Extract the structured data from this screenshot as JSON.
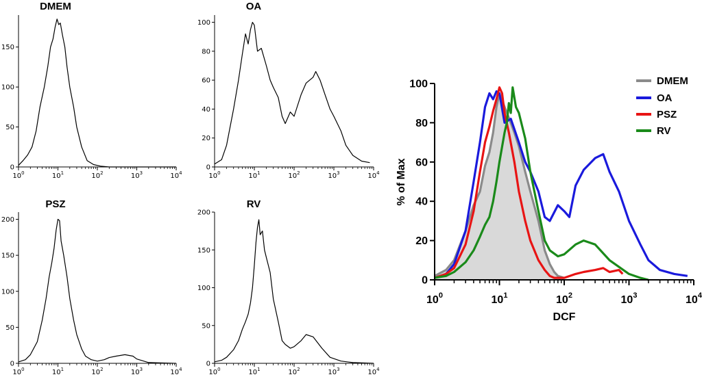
{
  "colors": {
    "DMEM": "#8a8a8a",
    "OA": "#1a1adc",
    "PSZ": "#e81414",
    "RV": "#1a8a1a",
    "fill": "#d9d9d9",
    "axis": "#000000"
  },
  "chart_data": [
    {
      "type": "line",
      "title": "DMEM",
      "xscale": "log",
      "xlim": [
        1,
        10000
      ],
      "ylim": [
        0,
        190
      ],
      "yticks": [
        0,
        50,
        100,
        150
      ],
      "xticks": [
        "1",
        "10",
        "100",
        "1000",
        "10000"
      ],
      "x": [
        1,
        1.3,
        1.7,
        2.2,
        2.8,
        3.5,
        4.5,
        5.5,
        6.5,
        7.5,
        8.5,
        9.5,
        10.5,
        11.5,
        13,
        15,
        17,
        20,
        25,
        30,
        40,
        55,
        80,
        120,
        200,
        10000
      ],
      "values": [
        2,
        8,
        15,
        25,
        45,
        75,
        100,
        125,
        150,
        160,
        175,
        185,
        178,
        180,
        165,
        150,
        125,
        100,
        75,
        50,
        25,
        8,
        3,
        1,
        0,
        0
      ]
    },
    {
      "type": "line",
      "title": "OA",
      "xscale": "log",
      "xlim": [
        1,
        10000
      ],
      "ylim": [
        0,
        105
      ],
      "yticks": [
        0,
        20,
        40,
        60,
        80,
        100
      ],
      "xticks": [
        "1",
        "10",
        "100",
        "1000",
        "10000"
      ],
      "x": [
        1,
        1.5,
        2,
        3,
        4,
        5,
        6,
        7,
        8,
        9,
        10,
        12,
        15,
        20,
        25,
        30,
        40,
        50,
        60,
        80,
        100,
        150,
        200,
        300,
        350,
        450,
        600,
        800,
        1000,
        1500,
        2000,
        3000,
        5000,
        8000
      ],
      "values": [
        2,
        5,
        15,
        40,
        60,
        78,
        92,
        85,
        95,
        100,
        98,
        80,
        82,
        70,
        60,
        55,
        48,
        35,
        30,
        38,
        35,
        50,
        58,
        62,
        66,
        60,
        50,
        40,
        35,
        25,
        15,
        8,
        4,
        3
      ]
    },
    {
      "type": "line",
      "title": "PSZ",
      "xscale": "log",
      "xlim": [
        1,
        10000
      ],
      "ylim": [
        0,
        210
      ],
      "yticks": [
        0,
        50,
        100,
        150,
        200
      ],
      "xticks": [
        "1",
        "10",
        "100",
        "1000",
        "10000"
      ],
      "x": [
        1,
        1.5,
        2,
        3,
        4,
        5,
        6,
        7,
        8,
        9,
        10,
        11,
        12,
        14,
        17,
        20,
        25,
        30,
        40,
        50,
        70,
        100,
        150,
        200,
        300,
        500,
        800,
        1000,
        2000,
        10000
      ],
      "values": [
        2,
        5,
        12,
        30,
        60,
        90,
        120,
        140,
        160,
        185,
        200,
        198,
        170,
        150,
        120,
        90,
        60,
        40,
        20,
        10,
        5,
        3,
        5,
        8,
        10,
        12,
        10,
        6,
        1,
        0
      ]
    },
    {
      "type": "line",
      "title": "RV",
      "xscale": "log",
      "xlim": [
        1,
        10000
      ],
      "ylim": [
        0,
        200
      ],
      "yticks": [
        0,
        50,
        100,
        150,
        200
      ],
      "xticks": [
        "1",
        "10",
        "100",
        "1000",
        "10000"
      ],
      "x": [
        1,
        1.5,
        2,
        3,
        4,
        5,
        6,
        7,
        8,
        9,
        10,
        11,
        12,
        13,
        14,
        16,
        18,
        20,
        25,
        30,
        40,
        50,
        60,
        80,
        100,
        150,
        200,
        300,
        500,
        800,
        1500,
        3000,
        10000
      ],
      "values": [
        2,
        4,
        8,
        18,
        30,
        45,
        55,
        65,
        80,
        100,
        130,
        160,
        180,
        190,
        170,
        175,
        150,
        140,
        120,
        85,
        55,
        30,
        25,
        20,
        22,
        30,
        38,
        35,
        20,
        8,
        3,
        1,
        0
      ]
    },
    {
      "type": "line",
      "title": "",
      "xlabel": "DCF",
      "ylabel": "% of Max",
      "xscale": "log",
      "xlim": [
        1,
        10000
      ],
      "ylim": [
        0,
        100
      ],
      "yticks": [
        "0",
        "20",
        "40",
        "60",
        "80",
        "100"
      ],
      "xticks": [
        "1",
        "10",
        "100",
        "1000",
        "10000"
      ],
      "xtick_labels": [
        {
          "base": "10",
          "exp": "0"
        },
        {
          "base": "10",
          "exp": "1"
        },
        {
          "base": "10",
          "exp": "2"
        },
        {
          "base": "10",
          "exp": "3"
        },
        {
          "base": "10",
          "exp": "4"
        }
      ],
      "legend": [
        "DMEM",
        "OA",
        "PSZ",
        "RV"
      ],
      "legend_position": "top-right",
      "series": [
        {
          "name": "DMEM",
          "filled": true,
          "x": [
            1,
            1.5,
            2,
            3,
            4,
            5,
            6,
            7,
            8,
            9,
            10,
            12,
            15,
            17,
            20,
            25,
            30,
            40,
            50,
            60,
            70,
            80,
            100
          ],
          "values": [
            2,
            5,
            10,
            25,
            38,
            45,
            58,
            65,
            75,
            88,
            95,
            88,
            80,
            75,
            68,
            55,
            45,
            30,
            15,
            8,
            4,
            2,
            1
          ]
        },
        {
          "name": "OA",
          "x": [
            1,
            1.5,
            2,
            3,
            4,
            5,
            6,
            7,
            8,
            9,
            10,
            12,
            15,
            20,
            25,
            30,
            40,
            50,
            60,
            80,
            100,
            120,
            150,
            200,
            300,
            400,
            500,
            700,
            1000,
            1500,
            2000,
            3000,
            5000,
            8000
          ],
          "values": [
            1,
            3,
            8,
            25,
            50,
            70,
            88,
            95,
            92,
            96,
            95,
            80,
            82,
            70,
            60,
            55,
            45,
            32,
            30,
            38,
            35,
            32,
            48,
            56,
            62,
            64,
            55,
            45,
            30,
            18,
            10,
            5,
            3,
            2
          ]
        },
        {
          "name": "PSZ",
          "x": [
            1,
            1.5,
            2,
            3,
            4,
            5,
            6,
            7,
            8,
            9,
            10,
            11,
            12,
            14,
            17,
            20,
            25,
            30,
            40,
            50,
            60,
            70,
            100,
            150,
            200,
            300,
            400,
            500,
            700,
            800
          ],
          "values": [
            1,
            3,
            6,
            18,
            35,
            55,
            70,
            78,
            86,
            92,
            98,
            95,
            85,
            75,
            60,
            45,
            30,
            20,
            10,
            5,
            2,
            1,
            1,
            3,
            4,
            5,
            6,
            4,
            5,
            3
          ]
        },
        {
          "name": "RV",
          "x": [
            1,
            1.5,
            2,
            3,
            4,
            5,
            6,
            7,
            8,
            9,
            10,
            12,
            13,
            14,
            15,
            16,
            18,
            20,
            25,
            30,
            40,
            50,
            60,
            80,
            100,
            150,
            200,
            300,
            500,
            1000,
            1500,
            2000
          ],
          "values": [
            1,
            2,
            4,
            9,
            15,
            22,
            28,
            32,
            40,
            50,
            60,
            75,
            80,
            90,
            85,
            98,
            88,
            85,
            72,
            55,
            35,
            20,
            15,
            12,
            13,
            18,
            20,
            18,
            10,
            3,
            1,
            0
          ]
        }
      ]
    }
  ]
}
